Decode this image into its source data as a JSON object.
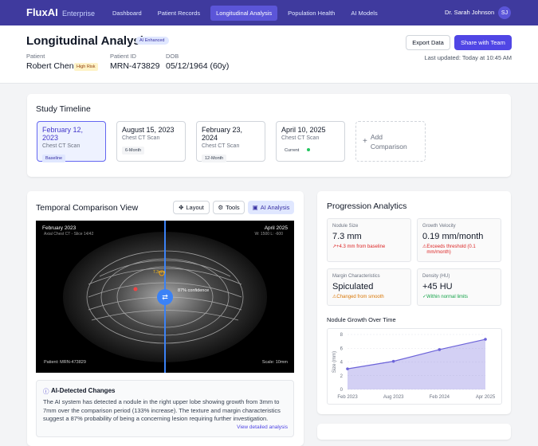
{
  "nav": {
    "brand": "FluxAI",
    "edition": "Enterprise",
    "items": [
      "Dashboard",
      "Patient Records",
      "Longitudinal Analysis",
      "Population Health",
      "AI Models"
    ],
    "active": 2,
    "user": "Dr. Sarah Johnson",
    "initials": "SJ"
  },
  "header": {
    "title": "Longitudinal Analysis",
    "badge": "AI Enhanced",
    "actions": [
      "Export Data",
      "Share with Team"
    ],
    "updated": "Last updated: Today at 10:45 AM",
    "patient": [
      {
        "label": "Patient",
        "value": "Robert Chen",
        "tag": "High Risk"
      },
      {
        "label": "Patient ID",
        "value": "MRN-473829"
      },
      {
        "label": "DOB",
        "value": "05/12/1964 (60y)"
      }
    ]
  },
  "timeline": {
    "title": "Study Timeline",
    "studies": [
      {
        "date": "February 12, 2023",
        "type": "Chest CT Scan",
        "tag": "Baseline"
      },
      {
        "date": "August 15, 2023",
        "type": "Chest CT Scan",
        "tag": "6-Month"
      },
      {
        "date": "February 23, 2024",
        "type": "Chest CT Scan",
        "tag": "12-Month"
      },
      {
        "date": "April 10, 2025",
        "type": "Chest CT Scan",
        "tag": "Current"
      }
    ],
    "add": "Add Comparison"
  },
  "comparison": {
    "title": "Temporal Comparison View",
    "tools": [
      "Layout",
      "Tools",
      "AI Analysis"
    ],
    "image": {
      "left_date": "February 2023",
      "right_date": "April 2025",
      "series": "Axial Chest CT - Slice 14/42",
      "window": "W: 1500 L: -600",
      "patient": "Patient: MRN-473829",
      "scale": "Scale: 10mm",
      "measure": "7.3mm",
      "confidence": "87% confidence"
    },
    "ai": {
      "title": "AI-Detected Changes",
      "text": "The AI system has detected a nodule in the right upper lobe showing growth from 3mm to 7mm over the comparison period (133% increase). The texture and margin characteristics suggest a 87% probability of being a concerning lesion requiring further investigation.",
      "link": "View detailed analysis"
    }
  },
  "analytics": {
    "title": "Progression Analytics",
    "metrics": [
      {
        "label": "Nodule Size",
        "value": "7.3 mm",
        "note": "+4.3 mm from baseline"
      },
      {
        "label": "Growth Velocity",
        "value": "0.19 mm/month",
        "note": "Exceeds threshold (0.1 mm/month)"
      },
      {
        "label": "Margin Characteristics",
        "value": "Spiculated",
        "note": "Changed from smooth"
      },
      {
        "label": "Density (HU)",
        "value": "+45 HU",
        "note": "Within normal limits"
      }
    ]
  },
  "chart_data": {
    "type": "line",
    "title": "Nodule Growth Over Time",
    "y_label": "Size (mm)",
    "categories": [
      "Feb 2023",
      "Aug 2023",
      "Feb 2024",
      "Apr 2025"
    ],
    "values": [
      3,
      4.1,
      5.8,
      7.3
    ],
    "color": "#6c63d9",
    "ylim": [
      0,
      8
    ],
    "yticks": [
      0,
      2,
      4,
      6,
      8
    ],
    "grid": true
  }
}
